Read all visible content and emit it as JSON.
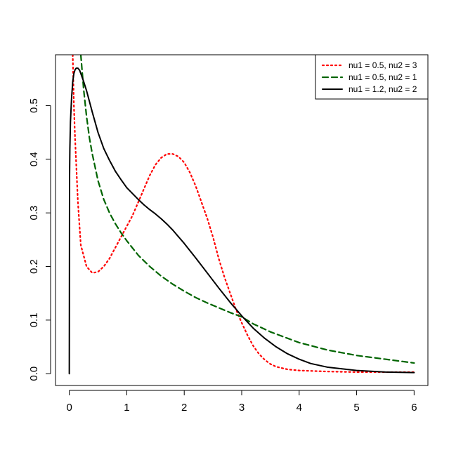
{
  "chart_data": {
    "type": "line",
    "title": "",
    "xlabel": "",
    "ylabel": "",
    "xlim": [
      -0.24,
      6.24
    ],
    "ylim": [
      -0.022,
      0.595
    ],
    "grid": false,
    "legend_position": "top-right",
    "x_ticks": [
      0,
      1,
      2,
      3,
      4,
      5,
      6
    ],
    "x_tick_labels": [
      "0",
      "1",
      "2",
      "3",
      "4",
      "5",
      "6"
    ],
    "y_ticks": [
      0.0,
      0.1,
      0.2,
      0.3,
      0.4,
      0.5
    ],
    "y_tick_labels": [
      "0.0",
      "0.1",
      "0.2",
      "0.3",
      "0.4",
      "0.5"
    ],
    "series": [
      {
        "name": "nu1 = 0.5, nu2 = 3",
        "color": "#ff0000",
        "line_style": "dotted",
        "x": [
          0.06,
          0.08,
          0.1,
          0.15,
          0.2,
          0.3,
          0.4,
          0.5,
          0.6,
          0.7,
          0.8,
          0.9,
          1.0,
          1.1,
          1.2,
          1.3,
          1.4,
          1.5,
          1.6,
          1.7,
          1.8,
          1.9,
          2.0,
          2.1,
          2.2,
          2.3,
          2.4,
          2.5,
          2.6,
          2.7,
          2.8,
          2.9,
          3.0,
          3.1,
          3.2,
          3.3,
          3.4,
          3.5,
          3.6,
          3.8,
          4.0,
          4.5,
          5.0,
          5.5,
          6.0
        ],
        "y": [
          0.595,
          0.5,
          0.44,
          0.32,
          0.24,
          0.2,
          0.188,
          0.19,
          0.2,
          0.215,
          0.235,
          0.255,
          0.275,
          0.295,
          0.32,
          0.345,
          0.37,
          0.39,
          0.403,
          0.41,
          0.41,
          0.405,
          0.394,
          0.375,
          0.35,
          0.32,
          0.29,
          0.255,
          0.215,
          0.18,
          0.15,
          0.12,
          0.095,
          0.072,
          0.052,
          0.037,
          0.026,
          0.018,
          0.013,
          0.008,
          0.006,
          0.004,
          0.003,
          0.003,
          0.003
        ]
      },
      {
        "name": "nu1 = 0.5, nu2 = 1",
        "color": "#006400",
        "line_style": "dashed",
        "x": [
          0.2,
          0.25,
          0.3,
          0.35,
          0.4,
          0.5,
          0.6,
          0.7,
          0.8,
          0.9,
          1.0,
          1.2,
          1.4,
          1.6,
          1.8,
          2.0,
          2.2,
          2.4,
          2.6,
          2.8,
          3.0,
          3.2,
          3.5,
          4.0,
          4.5,
          5.0,
          5.5,
          6.0
        ],
        "y": [
          0.595,
          0.53,
          0.48,
          0.44,
          0.41,
          0.36,
          0.325,
          0.3,
          0.28,
          0.263,
          0.248,
          0.221,
          0.2,
          0.182,
          0.167,
          0.154,
          0.142,
          0.132,
          0.123,
          0.114,
          0.106,
          0.093,
          0.078,
          0.058,
          0.044,
          0.034,
          0.027,
          0.02
        ]
      },
      {
        "name": "nu1 = 1.2, nu2 = 2",
        "color": "#000000",
        "line_style": "solid",
        "x": [
          0.0,
          0.005,
          0.01,
          0.02,
          0.04,
          0.06,
          0.08,
          0.1,
          0.12,
          0.15,
          0.18,
          0.2,
          0.25,
          0.3,
          0.35,
          0.4,
          0.5,
          0.6,
          0.7,
          0.8,
          0.9,
          1.0,
          1.1,
          1.2,
          1.3,
          1.4,
          1.5,
          1.6,
          1.7,
          1.8,
          2.0,
          2.2,
          2.4,
          2.6,
          2.8,
          3.0,
          3.2,
          3.4,
          3.6,
          3.8,
          4.0,
          4.2,
          4.5,
          5.0,
          5.5,
          6.0
        ],
        "y": [
          0.0,
          0.37,
          0.42,
          0.47,
          0.515,
          0.545,
          0.56,
          0.567,
          0.57,
          0.57,
          0.566,
          0.56,
          0.545,
          0.528,
          0.508,
          0.488,
          0.45,
          0.42,
          0.398,
          0.378,
          0.362,
          0.347,
          0.336,
          0.325,
          0.315,
          0.306,
          0.298,
          0.289,
          0.279,
          0.268,
          0.243,
          0.216,
          0.188,
          0.16,
          0.133,
          0.108,
          0.085,
          0.066,
          0.05,
          0.037,
          0.027,
          0.019,
          0.012,
          0.006,
          0.003,
          0.002
        ]
      }
    ]
  }
}
